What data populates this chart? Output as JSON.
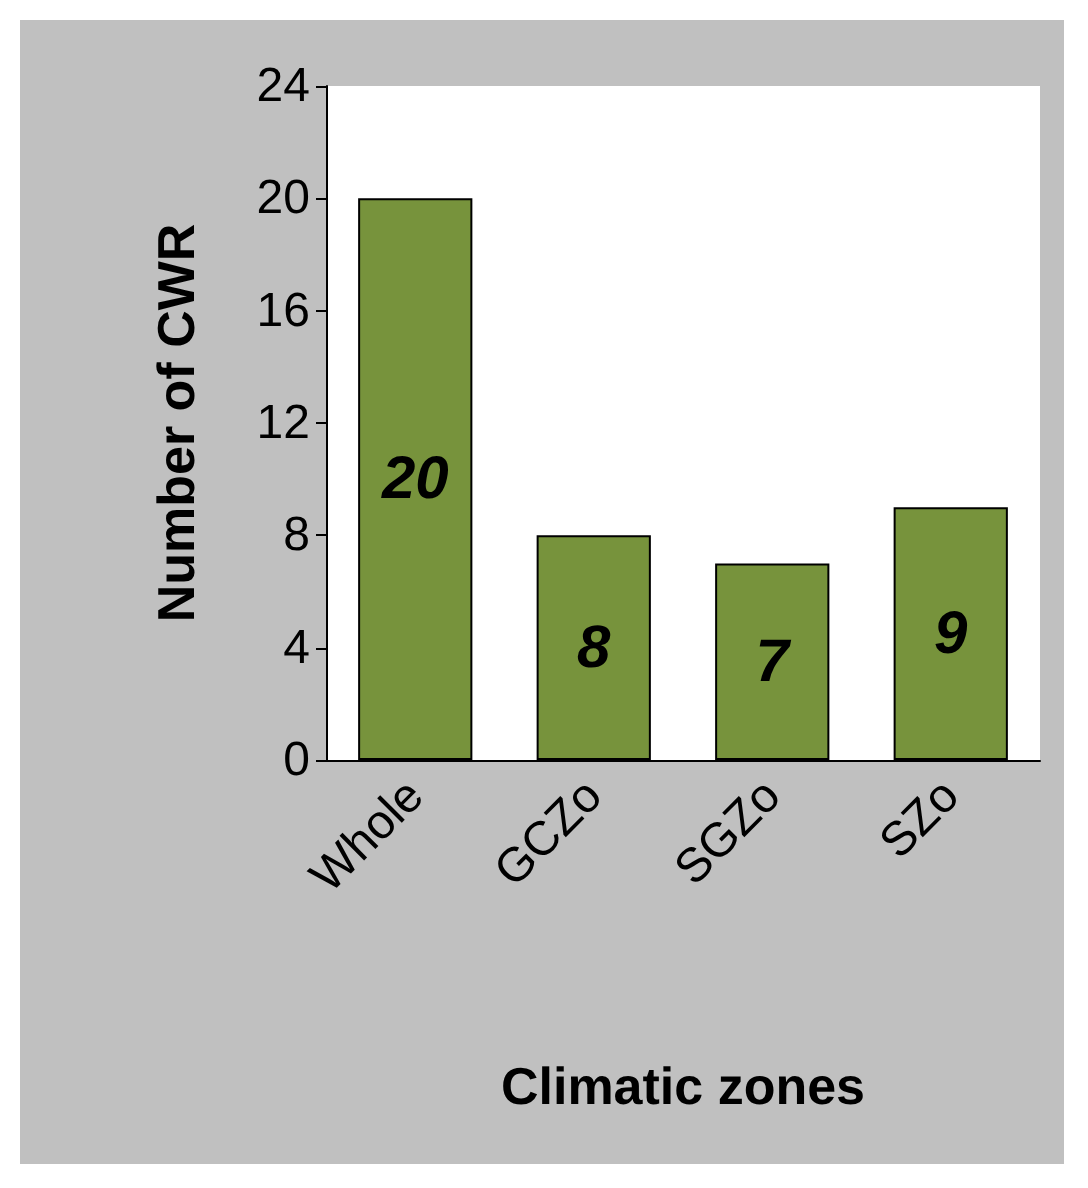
{
  "chart_data": {
    "type": "bar",
    "xlabel": "Climatic zones",
    "ylabel": "Number of CWR",
    "categories": [
      "Whole",
      "GCZo",
      "SGZo",
      "SZo"
    ],
    "values": [
      20,
      8,
      7,
      9
    ],
    "color": "#77933c",
    "ylim": [
      0,
      24
    ],
    "yticks": [
      0,
      4,
      8,
      12,
      16,
      20,
      24
    ],
    "grid": false,
    "data_labels": true
  }
}
